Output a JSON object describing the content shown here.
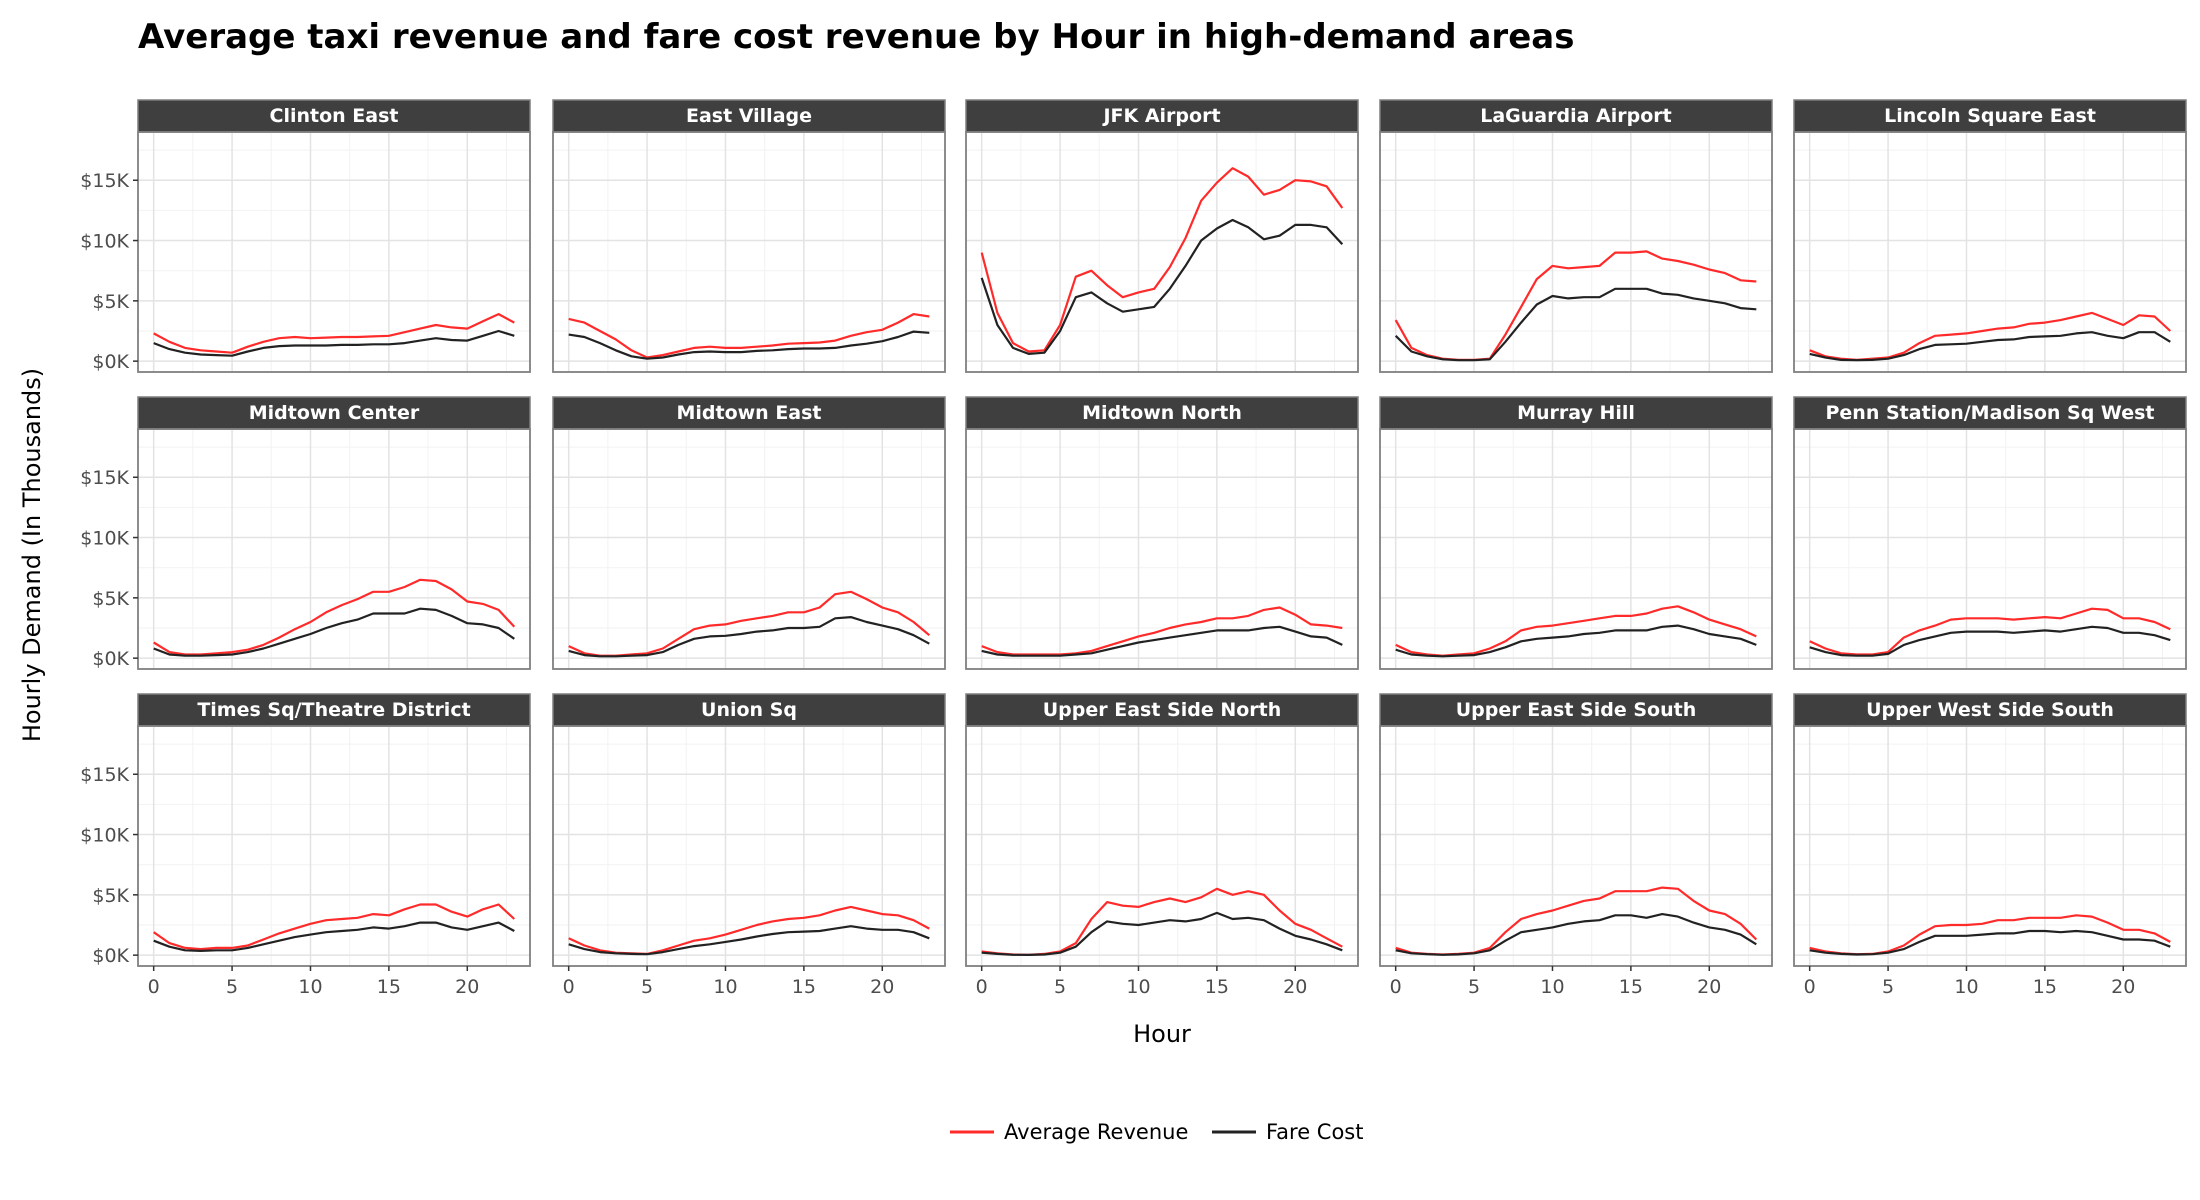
{
  "chart_data": {
    "type": "line",
    "title": "Average taxi revenue and fare cost revenue by Hour in high-demand areas",
    "xlabel": "Hour",
    "ylabel": "Hourly Demand (In Thousands)",
    "xlim": [
      -1,
      24
    ],
    "ylim": [
      -900,
      19000
    ],
    "x_ticks": [
      0,
      5,
      10,
      15,
      20
    ],
    "x_tick_labels": [
      "0",
      "5",
      "10",
      "15",
      "20"
    ],
    "y_ticks": [
      0,
      5000,
      10000,
      15000
    ],
    "y_tick_labels": [
      "$0K",
      "$5K",
      "$10K",
      "$15K"
    ],
    "grid": true,
    "legend_position": "bottom",
    "series_styles": [
      {
        "name": "Average Revenue",
        "color": "#ff2a2a"
      },
      {
        "name": "Fare Cost",
        "color": "#222222"
      }
    ],
    "x": [
      0,
      1,
      2,
      3,
      4,
      5,
      6,
      7,
      8,
      9,
      10,
      11,
      12,
      13,
      14,
      15,
      16,
      17,
      18,
      19,
      20,
      21,
      22,
      23
    ],
    "panels": [
      {
        "name": "Clinton East",
        "series": [
          {
            "name": "Average Revenue",
            "values": [
              2300,
              1600,
              1100,
              900,
              800,
              700,
              1200,
              1600,
              1900,
              2000,
              1900,
              1950,
              2000,
              2000,
              2050,
              2100,
              2400,
              2700,
              3000,
              2800,
              2700,
              3300,
              3900,
              3200
            ]
          },
          {
            "name": "Fare Cost",
            "values": [
              1500,
              1000,
              700,
              550,
              500,
              450,
              800,
              1100,
              1250,
              1300,
              1300,
              1300,
              1350,
              1350,
              1400,
              1400,
              1500,
              1700,
              1900,
              1750,
              1700,
              2100,
              2500,
              2100
            ]
          }
        ]
      },
      {
        "name": "East Village",
        "series": [
          {
            "name": "Average Revenue",
            "values": [
              3500,
              3200,
              2500,
              1800,
              900,
              300,
              500,
              800,
              1100,
              1200,
              1100,
              1100,
              1200,
              1300,
              1450,
              1500,
              1550,
              1700,
              2100,
              2400,
              2600,
              3200,
              3900,
              3700
            ]
          },
          {
            "name": "Fare Cost",
            "values": [
              2200,
              2000,
              1500,
              900,
              400,
              200,
              300,
              550,
              750,
              800,
              750,
              750,
              850,
              900,
              1000,
              1050,
              1050,
              1100,
              1300,
              1450,
              1650,
              2000,
              2450,
              2350
            ]
          }
        ]
      },
      {
        "name": "JFK Airport",
        "series": [
          {
            "name": "Average Revenue",
            "values": [
              9000,
              4000,
              1500,
              800,
              900,
              3000,
              7000,
              7500,
              6300,
              5300,
              5700,
              6000,
              7800,
              10200,
              13300,
              14800,
              16000,
              15300,
              13800,
              14200,
              15000,
              14900,
              14500,
              12700
            ]
          },
          {
            "name": "Fare Cost",
            "values": [
              6900,
              3000,
              1100,
              600,
              700,
              2500,
              5300,
              5700,
              4800,
              4100,
              4300,
              4500,
              6000,
              7900,
              10000,
              11000,
              11700,
              11100,
              10100,
              10400,
              11300,
              11300,
              11100,
              9700
            ]
          }
        ]
      },
      {
        "name": "LaGuardia Airport",
        "series": [
          {
            "name": "Average Revenue",
            "values": [
              3400,
              1100,
              500,
              200,
              100,
              100,
              200,
              2200,
              4500,
              6800,
              7900,
              7700,
              7800,
              7900,
              9000,
              9000,
              9100,
              8500,
              8300,
              8000,
              7600,
              7300,
              6700,
              6600
            ]
          },
          {
            "name": "Fare Cost",
            "values": [
              2100,
              800,
              400,
              150,
              80,
              80,
              150,
              1600,
              3200,
              4700,
              5400,
              5200,
              5300,
              5300,
              6000,
              6000,
              6000,
              5600,
              5500,
              5200,
              5000,
              4800,
              4400,
              4300
            ]
          }
        ]
      },
      {
        "name": "Lincoln Square East",
        "series": [
          {
            "name": "Average Revenue",
            "values": [
              900,
              400,
              200,
              100,
              200,
              300,
              700,
              1500,
              2100,
              2200,
              2300,
              2500,
              2700,
              2800,
              3100,
              3200,
              3400,
              3700,
              4000,
              3500,
              3000,
              3800,
              3700,
              2500
            ]
          },
          {
            "name": "Fare Cost",
            "values": [
              600,
              300,
              100,
              80,
              100,
              200,
              500,
              1000,
              1350,
              1400,
              1450,
              1600,
              1750,
              1800,
              2000,
              2050,
              2100,
              2300,
              2400,
              2100,
              1900,
              2400,
              2400,
              1600
            ]
          }
        ]
      },
      {
        "name": "Midtown Center",
        "series": [
          {
            "name": "Average Revenue",
            "values": [
              1300,
              500,
              300,
              300,
              400,
              500,
              700,
              1100,
              1700,
              2400,
              3000,
              3800,
              4400,
              4900,
              5500,
              5500,
              5900,
              6500,
              6400,
              5700,
              4700,
              4500,
              4000,
              2600
            ]
          },
          {
            "name": "Fare Cost",
            "values": [
              800,
              300,
              200,
              200,
              250,
              300,
              500,
              800,
              1200,
              1600,
              2000,
              2500,
              2900,
              3200,
              3700,
              3700,
              3700,
              4100,
              4000,
              3500,
              2900,
              2800,
              2500,
              1600
            ]
          }
        ]
      },
      {
        "name": "Midtown East",
        "series": [
          {
            "name": "Average Revenue",
            "values": [
              1000,
              400,
              200,
              200,
              300,
              400,
              800,
              1600,
              2400,
              2700,
              2800,
              3100,
              3300,
              3500,
              3800,
              3800,
              4200,
              5300,
              5500,
              4900,
              4200,
              3800,
              3000,
              1900
            ]
          },
          {
            "name": "Fare Cost",
            "values": [
              600,
              250,
              150,
              150,
              200,
              250,
              500,
              1100,
              1600,
              1800,
              1850,
              2000,
              2200,
              2300,
              2500,
              2500,
              2600,
              3300,
              3400,
              3000,
              2700,
              2400,
              1900,
              1200
            ]
          }
        ]
      },
      {
        "name": "Midtown North",
        "series": [
          {
            "name": "Average Revenue",
            "values": [
              1000,
              500,
              300,
              300,
              300,
              300,
              400,
              600,
              1000,
              1400,
              1800,
              2100,
              2500,
              2800,
              3000,
              3300,
              3300,
              3500,
              4000,
              4200,
              3600,
              2800,
              2700,
              2500
            ]
          },
          {
            "name": "Fare Cost",
            "values": [
              600,
              300,
              200,
              200,
              200,
              200,
              300,
              400,
              700,
              1000,
              1300,
              1500,
              1700,
              1900,
              2100,
              2300,
              2300,
              2300,
              2500,
              2600,
              2200,
              1800,
              1700,
              1100
            ]
          }
        ]
      },
      {
        "name": "Murray Hill",
        "series": [
          {
            "name": "Average Revenue",
            "values": [
              1100,
              500,
              300,
              200,
              300,
              400,
              800,
              1400,
              2300,
              2600,
              2700,
              2900,
              3100,
              3300,
              3500,
              3500,
              3700,
              4100,
              4300,
              3800,
              3200,
              2800,
              2400,
              1800
            ]
          },
          {
            "name": "Fare Cost",
            "values": [
              700,
              300,
              200,
              150,
              200,
              250,
              500,
              900,
              1400,
              1600,
              1700,
              1800,
              2000,
              2100,
              2300,
              2300,
              2300,
              2600,
              2700,
              2400,
              2000,
              1800,
              1600,
              1100
            ]
          }
        ]
      },
      {
        "name": "Penn Station/Madison Sq West",
        "series": [
          {
            "name": "Average Revenue",
            "values": [
              1400,
              800,
              400,
              300,
              300,
              500,
              1700,
              2300,
              2700,
              3200,
              3300,
              3300,
              3300,
              3200,
              3300,
              3400,
              3300,
              3700,
              4100,
              4000,
              3300,
              3300,
              3000,
              2400
            ]
          },
          {
            "name": "Fare Cost",
            "values": [
              900,
              500,
              250,
              200,
              200,
              350,
              1100,
              1500,
              1800,
              2100,
              2200,
              2200,
              2200,
              2100,
              2200,
              2300,
              2200,
              2400,
              2600,
              2500,
              2100,
              2100,
              1900,
              1500
            ]
          }
        ]
      },
      {
        "name": "Times Sq/Theatre District",
        "series": [
          {
            "name": "Average Revenue",
            "values": [
              1900,
              1000,
              600,
              500,
              600,
              600,
              800,
              1300,
              1800,
              2200,
              2600,
              2900,
              3000,
              3100,
              3400,
              3300,
              3800,
              4200,
              4200,
              3600,
              3200,
              3800,
              4200,
              3000
            ]
          },
          {
            "name": "Fare Cost",
            "values": [
              1200,
              700,
              400,
              350,
              400,
              400,
              600,
              900,
              1200,
              1500,
              1700,
              1900,
              2000,
              2100,
              2300,
              2200,
              2400,
              2700,
              2700,
              2300,
              2100,
              2400,
              2700,
              2000
            ]
          }
        ]
      },
      {
        "name": "Union Sq",
        "series": [
          {
            "name": "Average Revenue",
            "values": [
              1400,
              800,
              400,
              200,
              150,
              100,
              400,
              800,
              1200,
              1400,
              1700,
              2100,
              2500,
              2800,
              3000,
              3100,
              3300,
              3700,
              4000,
              3700,
              3400,
              3300,
              2900,
              2200
            ]
          },
          {
            "name": "Fare Cost",
            "values": [
              900,
              500,
              250,
              150,
              100,
              80,
              250,
              500,
              750,
              900,
              1100,
              1300,
              1550,
              1750,
              1900,
              1950,
              2000,
              2200,
              2400,
              2200,
              2100,
              2100,
              1900,
              1400
            ]
          }
        ]
      },
      {
        "name": "Upper East Side North",
        "series": [
          {
            "name": "Average Revenue",
            "values": [
              300,
              150,
              50,
              30,
              100,
              300,
              1000,
              3000,
              4400,
              4100,
              4000,
              4400,
              4700,
              4400,
              4800,
              5500,
              5000,
              5300,
              5000,
              3700,
              2600,
              2100,
              1400,
              700
            ]
          },
          {
            "name": "Fare Cost",
            "values": [
              200,
              100,
              30,
              20,
              50,
              200,
              700,
              1900,
              2800,
              2600,
              2500,
              2700,
              2900,
              2800,
              3000,
              3500,
              3000,
              3100,
              2900,
              2200,
              1600,
              1300,
              900,
              400
            ]
          }
        ]
      },
      {
        "name": "Upper East Side South",
        "series": [
          {
            "name": "Average Revenue",
            "values": [
              600,
              200,
              100,
              50,
              100,
              200,
              600,
              1900,
              3000,
              3400,
              3700,
              4100,
              4500,
              4700,
              5300,
              5300,
              5300,
              5600,
              5500,
              4500,
              3700,
              3400,
              2600,
              1300
            ]
          },
          {
            "name": "Fare Cost",
            "values": [
              400,
              150,
              80,
              30,
              60,
              150,
              400,
              1200,
              1900,
              2100,
              2300,
              2600,
              2800,
              2900,
              3300,
              3300,
              3100,
              3400,
              3200,
              2700,
              2300,
              2100,
              1700,
              900
            ]
          }
        ]
      },
      {
        "name": "Upper West Side South",
        "series": [
          {
            "name": "Average Revenue",
            "values": [
              600,
              300,
              150,
              80,
              100,
              300,
              800,
              1700,
              2400,
              2500,
              2500,
              2600,
              2900,
              2900,
              3100,
              3100,
              3100,
              3300,
              3200,
              2700,
              2100,
              2100,
              1800,
              1100
            ]
          },
          {
            "name": "Fare Cost",
            "values": [
              400,
              200,
              100,
              50,
              80,
              200,
              500,
              1100,
              1600,
              1600,
              1600,
              1700,
              1800,
              1800,
              2000,
              2000,
              1900,
              2000,
              1900,
              1600,
              1300,
              1300,
              1200,
              700
            ]
          }
        ]
      }
    ]
  }
}
